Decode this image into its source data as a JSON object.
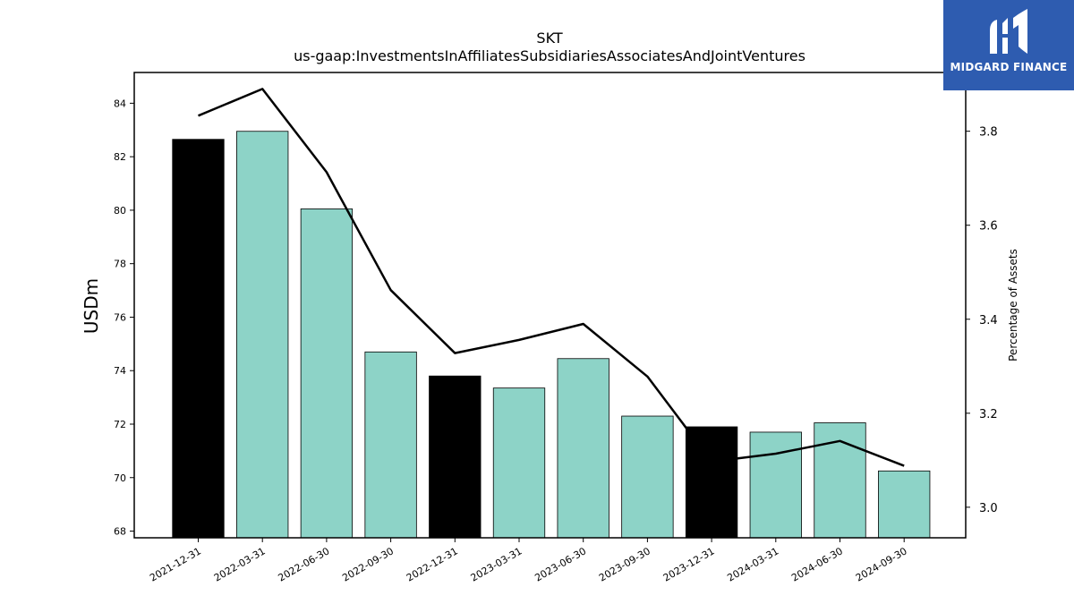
{
  "chart_data": {
    "type": "bar",
    "title": "SKT",
    "subtitle": "us-gaap:InvestmentsInAffiliatesSubsidiariesAssociatesAndJointVentures",
    "ylabel": "USDm",
    "y2label": "Percentage of Assets",
    "categories": [
      "2021-12-31",
      "2022-03-31",
      "2022-06-30",
      "2022-09-30",
      "2022-12-31",
      "2023-03-31",
      "2023-06-30",
      "2023-09-30",
      "2023-12-31",
      "2024-03-31",
      "2024-06-30",
      "2024-09-30"
    ],
    "values": [
      82.65,
      82.95,
      80.05,
      74.7,
      73.8,
      73.35,
      74.45,
      72.3,
      71.9,
      71.7,
      72.05,
      70.25
    ],
    "bar_colors": [
      "#000000",
      "#8dd3c7",
      "#8dd3c7",
      "#8dd3c7",
      "#000000",
      "#8dd3c7",
      "#8dd3c7",
      "#8dd3c7",
      "#000000",
      "#8dd3c7",
      "#8dd3c7",
      "#8dd3c7"
    ],
    "line_values": [
      3.833,
      3.89,
      3.713,
      3.462,
      3.328,
      3.356,
      3.39,
      3.278,
      3.097,
      3.114,
      3.141,
      3.088
    ],
    "ylim": [
      67.75,
      85.15
    ],
    "y2lim": [
      2.935,
      3.925
    ],
    "yticks": [
      68,
      70,
      72,
      74,
      76,
      78,
      80,
      82,
      84
    ],
    "y2ticks": [
      3.0,
      3.2,
      3.4,
      3.6,
      3.8
    ],
    "grid": false,
    "colors": {
      "line": "#000000",
      "bar_edge": "#000000"
    }
  },
  "logo": {
    "text": "MIDGARD FINANCE",
    "background": "#2e5cb0"
  }
}
